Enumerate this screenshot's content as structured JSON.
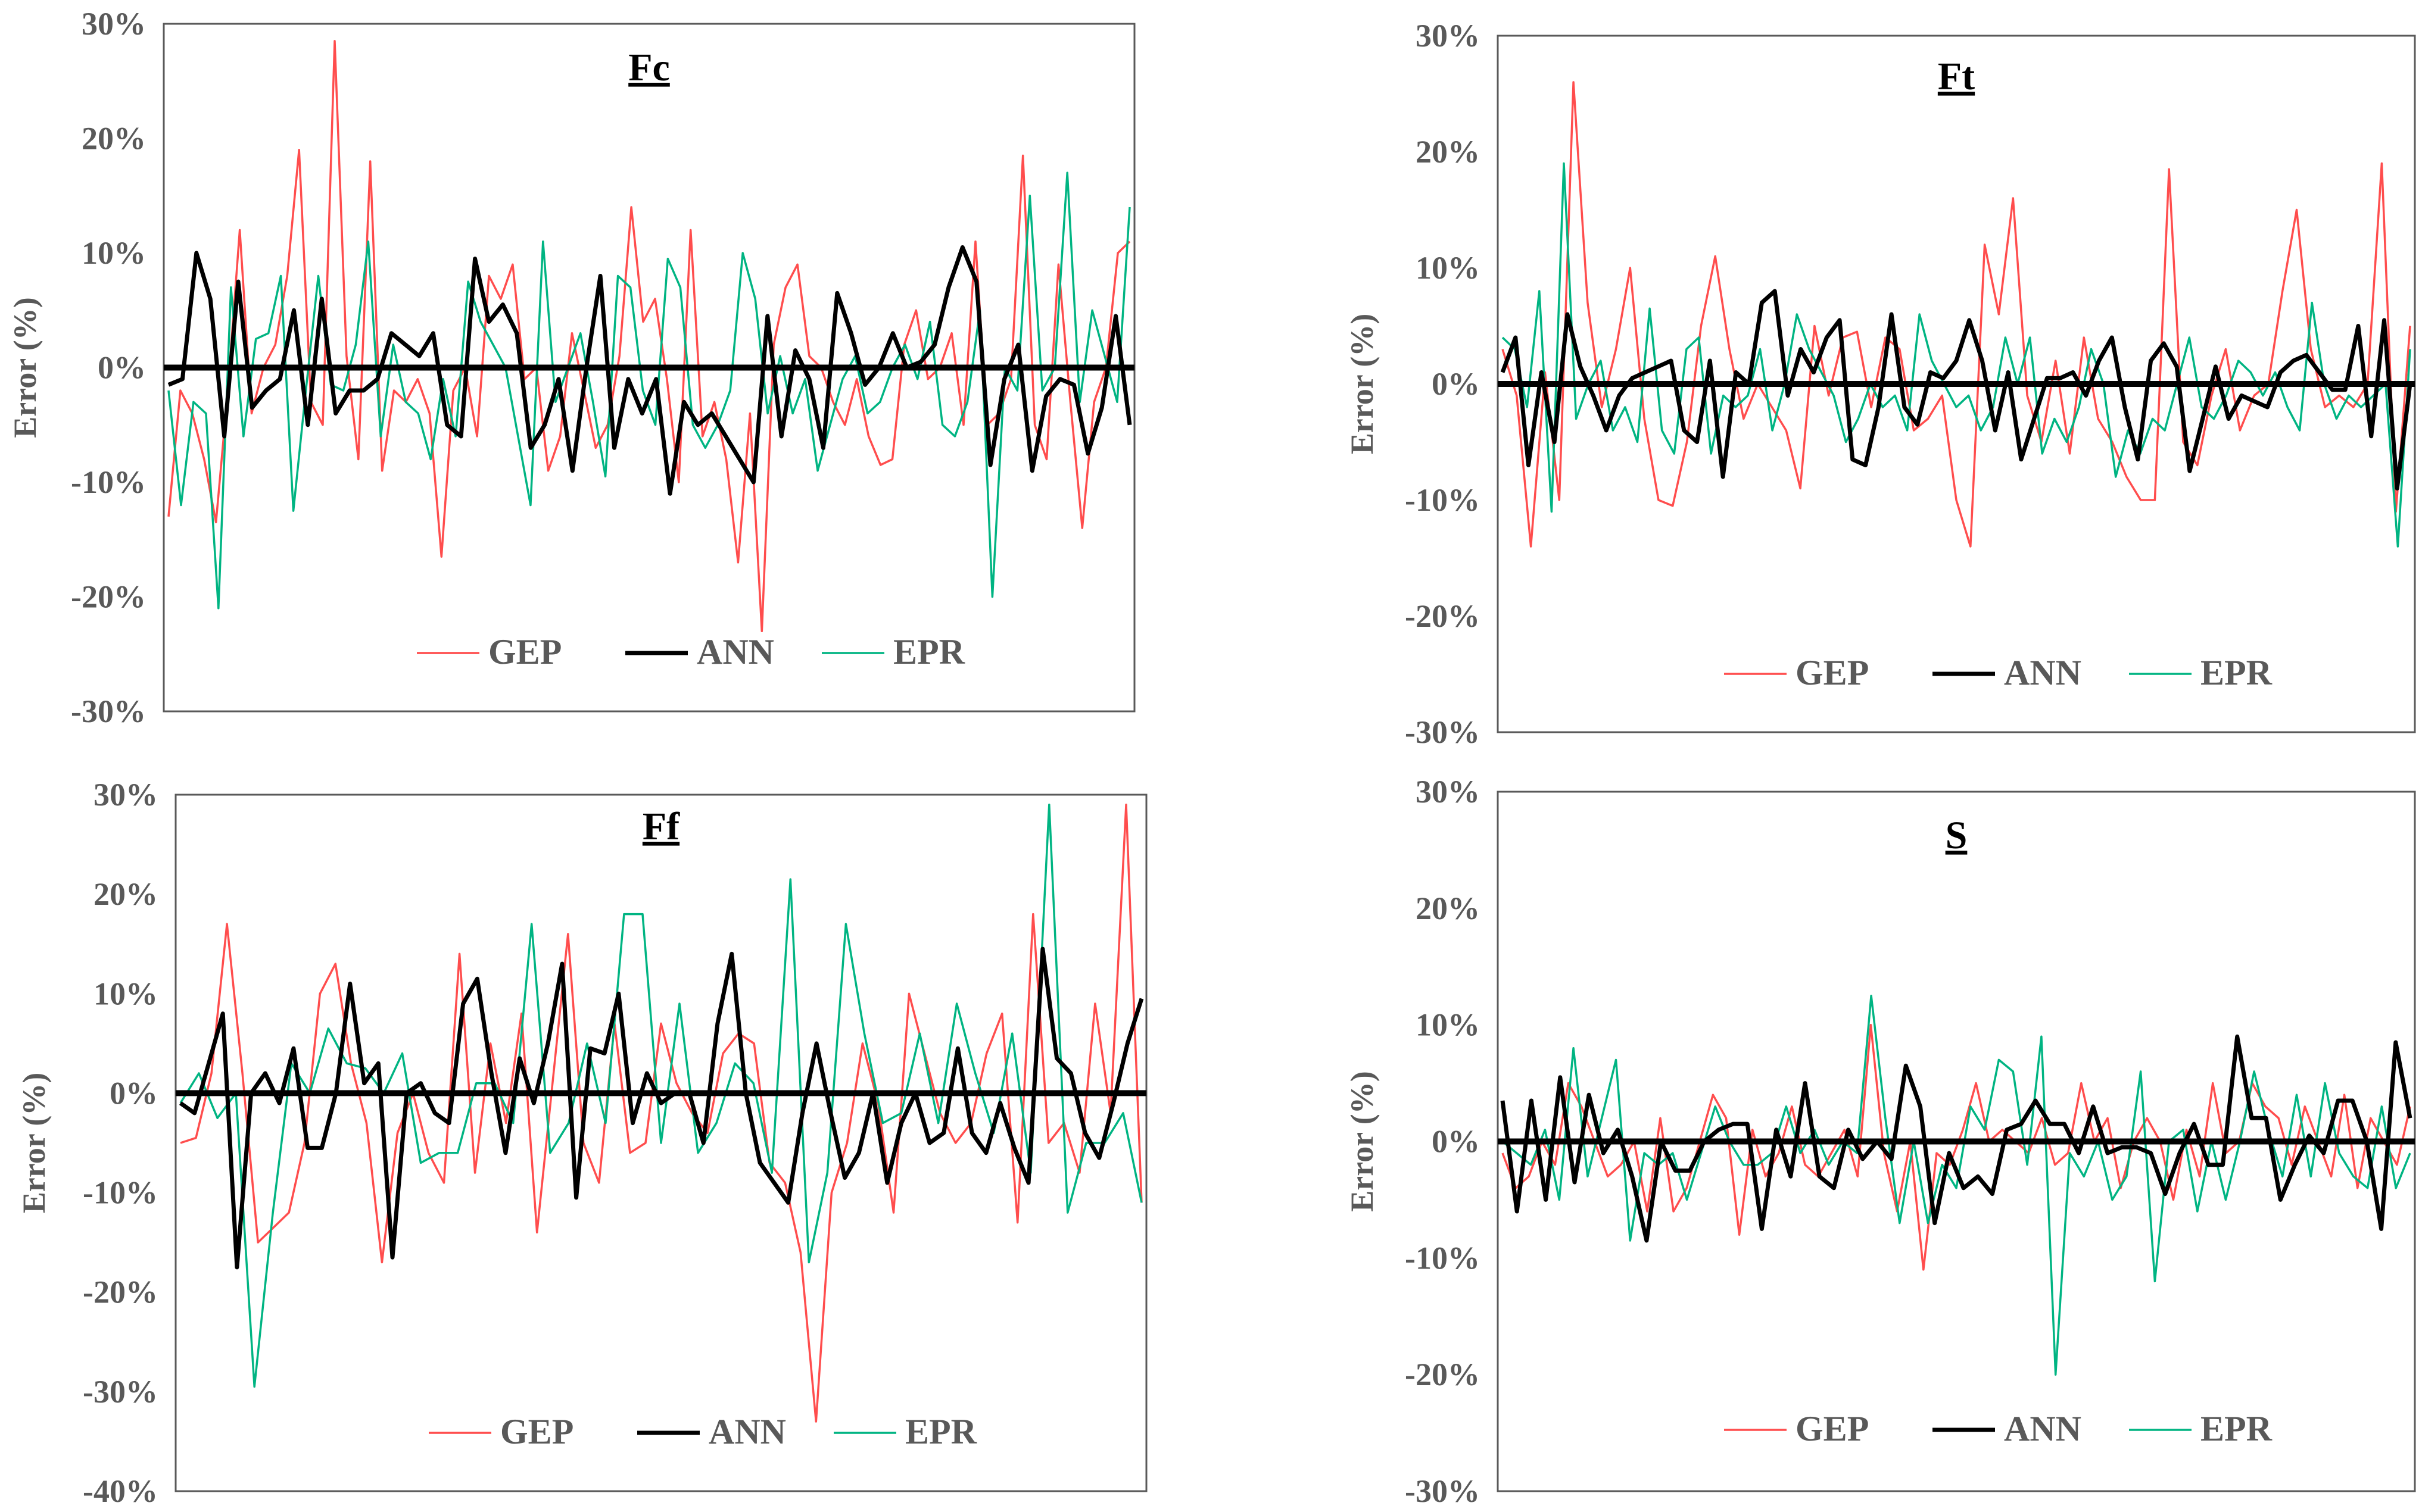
{
  "colors": {
    "GEP": "#ff4d4d",
    "ANN": "#000000",
    "EPR": "#00b482",
    "axis": "#595959",
    "zero": "#000000"
  },
  "chart_data": [
    {
      "type": "line",
      "title": "Fc",
      "xlabel": "",
      "ylabel": "Error (%)",
      "ylim": [
        -30,
        30
      ],
      "yticks": [
        "-30%",
        "-20%",
        "-10%",
        "0%",
        "10%",
        "20%",
        "30%"
      ],
      "legend": [
        "GEP",
        "ANN",
        "EPR"
      ],
      "legend_position": "bottom-center",
      "series": [
        {
          "name": "GEP",
          "values": [
            -13,
            -2,
            -4,
            -8,
            -13.5,
            -2,
            12,
            -4,
            0,
            2,
            8,
            19,
            -3,
            -5,
            28.5,
            1,
            -8,
            18,
            -9,
            -2,
            -3,
            -1,
            -4,
            -16.5,
            -2,
            0,
            -6,
            8,
            6,
            9,
            -1,
            0,
            -9,
            -6,
            3,
            -2,
            -7,
            -5,
            1,
            14,
            4,
            6,
            -1,
            -10,
            12,
            -6,
            -3,
            -8,
            -17,
            -4,
            -23,
            2,
            7,
            9,
            1,
            0,
            -3,
            -5,
            -1,
            -6,
            -8.5,
            -8,
            2,
            5,
            -1,
            0,
            3,
            -5,
            11,
            -5,
            -4,
            -1,
            18.5,
            -5,
            -8,
            9,
            -3,
            -14,
            -3,
            0,
            10,
            11
          ]
        },
        {
          "name": "ANN",
          "values": [
            -1.5,
            -1,
            10,
            6,
            -6,
            7.5,
            -3.5,
            -2,
            -1,
            5,
            -5,
            6,
            -4,
            -2,
            -2,
            -1,
            3,
            2,
            1,
            3,
            -5,
            -6,
            9.5,
            4,
            5.5,
            3,
            -7,
            -5,
            -1,
            -9,
            0,
            8,
            -7,
            -1,
            -4,
            -1,
            -11,
            -3,
            -5,
            -4,
            -6,
            -8,
            -10,
            4.5,
            -6,
            1.5,
            -1,
            -7,
            6.5,
            3,
            -1.5,
            0,
            3,
            0,
            0.5,
            2,
            7,
            10.5,
            7.5,
            -8.5,
            -1,
            2,
            -9,
            -2.5,
            -1,
            -1.5,
            -7.5,
            -3.5,
            4.5,
            -5
          ]
        },
        {
          "name": "EPR",
          "values": [
            -2,
            -12,
            -3,
            -4,
            -21,
            7,
            -6,
            2.5,
            3,
            8,
            -12.5,
            -2,
            8,
            -1.5,
            -2,
            2,
            11,
            -6,
            2,
            -3,
            -4,
            -8,
            -1,
            -6,
            7.5,
            4,
            2,
            0,
            -6,
            -12,
            11,
            -3,
            0,
            3,
            -3,
            -9.5,
            8,
            7,
            -2,
            -5,
            9.5,
            7,
            -5,
            -7,
            -5,
            -2,
            10,
            6,
            -4,
            1,
            -4,
            -1,
            -9,
            -5,
            -1,
            1,
            -4,
            -3,
            0,
            2,
            -1,
            4,
            -5,
            -6,
            -3,
            5,
            -20,
            0,
            -2,
            15,
            -2,
            0,
            17,
            -3,
            5,
            1,
            -3,
            14
          ]
        }
      ]
    },
    {
      "type": "line",
      "title": "Ft",
      "xlabel": "",
      "ylabel": "Error (%)",
      "ylim": [
        -30,
        30
      ],
      "yticks": [
        "-30%",
        "-20%",
        "-10%",
        "0%",
        "10%",
        "20%",
        "30%"
      ],
      "legend": [
        "GEP",
        "ANN",
        "EPR"
      ],
      "legend_position": "bottom-center",
      "series": [
        {
          "name": "GEP",
          "values": [
            3,
            -1,
            -14,
            1,
            -10,
            26,
            7,
            -2,
            3,
            10,
            -3,
            -10,
            -10.5,
            -5,
            5,
            11,
            3,
            -3,
            0,
            -2,
            -4,
            -9,
            5,
            -1,
            4,
            4.5,
            -2,
            4,
            3,
            -4,
            -3,
            -1,
            -10,
            -14,
            12,
            6,
            16,
            -1,
            -5,
            2,
            -6,
            4,
            -3,
            -5,
            -8,
            -10,
            -10,
            18.5,
            -5,
            -7,
            -1,
            3,
            -4,
            -1,
            0,
            8,
            15,
            3,
            -2,
            -1,
            -2,
            0,
            19,
            -11,
            5
          ]
        },
        {
          "name": "ANN",
          "values": [
            1,
            4,
            -7,
            1,
            -5,
            6,
            1.5,
            -1,
            -4,
            -1,
            0.5,
            1,
            1.5,
            2,
            -4,
            -5,
            2,
            -8,
            1,
            0,
            7,
            8,
            -1,
            3,
            1,
            4,
            5.5,
            -6.5,
            -7,
            -2,
            6,
            -2,
            -3.5,
            1,
            0.5,
            2,
            5.5,
            2,
            -4,
            1,
            -6.5,
            -3,
            0.5,
            0.5,
            1,
            -1,
            2,
            4,
            -2,
            -6.5,
            2,
            3.5,
            1.5,
            -7.5,
            -3,
            1.5,
            -3,
            -1,
            -1.5,
            -2,
            1,
            2,
            2.5,
            1,
            -0.5,
            -0.5,
            5,
            -4.5,
            5.5,
            -9,
            0
          ]
        },
        {
          "name": "EPR",
          "values": [
            4,
            3,
            -2,
            8,
            -11,
            19,
            -3,
            0,
            2,
            -4,
            -2,
            -5,
            6.5,
            -4,
            -6,
            3,
            4,
            -6,
            -1,
            -2,
            -1,
            3,
            -4,
            0,
            6,
            3,
            1,
            -1,
            -5,
            -3,
            0,
            -2,
            -1,
            -4,
            6,
            2,
            0,
            -2,
            -1,
            -4,
            -2,
            4,
            0,
            4,
            -6,
            -3,
            -5,
            -2,
            3,
            0,
            -8,
            -4,
            -6,
            -3,
            -4,
            0,
            4,
            -2,
            -3,
            -1,
            2,
            1,
            -1,
            1,
            -2,
            -4,
            7,
            0,
            -3,
            -1,
            -2,
            -1,
            0,
            -14,
            3
          ]
        }
      ]
    },
    {
      "type": "line",
      "title": "Ff",
      "xlabel": "",
      "ylabel": "Error (%)",
      "ylim": [
        -40,
        30
      ],
      "yticks": [
        "-40%",
        "-30%",
        "-20%",
        "-10%",
        "0%",
        "10%",
        "20%",
        "30%"
      ],
      "legend": [
        "GEP",
        "ANN",
        "EPR"
      ],
      "legend_position": "bottom-center",
      "series": [
        {
          "name": "GEP",
          "values": [
            -5,
            -4.5,
            2,
            17,
            2,
            -15,
            -13.5,
            -12,
            -5,
            10,
            13,
            3,
            -3,
            -17,
            -4,
            0,
            -6,
            -9,
            14,
            -8,
            5,
            -3,
            8,
            -14,
            1,
            16,
            -5,
            -9,
            7,
            -6,
            -5,
            7,
            1,
            -2,
            -4,
            4,
            6,
            5,
            -7,
            -9,
            -16,
            -33,
            -10,
            -5,
            5,
            -1,
            -12,
            10,
            4,
            -2,
            -5,
            -3,
            4,
            8,
            -13,
            18,
            -5,
            -3,
            -8,
            9,
            -2,
            29,
            -11
          ]
        },
        {
          "name": "ANN",
          "values": [
            -1,
            -2,
            3,
            8,
            -17.5,
            0,
            2,
            -1,
            4.5,
            -5.5,
            -5.5,
            0,
            11,
            1,
            3,
            -16.5,
            0,
            1,
            -2,
            -3,
            9,
            11.5,
            2,
            -6,
            3.5,
            -1,
            5,
            13,
            -10.5,
            4.5,
            4,
            10,
            -3,
            2,
            -1,
            0,
            0,
            -5,
            7,
            14,
            0,
            -7,
            -9,
            -11,
            -2,
            5,
            -2,
            -8.5,
            -6,
            0,
            -9,
            -3,
            0,
            -5,
            -4,
            4.5,
            -4,
            -6,
            -1,
            -5.5,
            -9,
            14.5,
            3.5,
            2,
            -4,
            -6.5,
            -1,
            5,
            9.5
          ]
        },
        {
          "name": "EPR",
          "values": [
            -1,
            2,
            -2.5,
            0,
            -29.5,
            -12,
            3,
            0,
            6.5,
            3,
            2.5,
            0,
            4,
            -7,
            -6,
            -6,
            1,
            1,
            -3,
            17,
            -6,
            -3,
            5,
            -3,
            18,
            18,
            -5,
            9,
            -6,
            -3,
            3,
            1,
            -8,
            21.5,
            -17,
            -8,
            17,
            6,
            -3,
            -2,
            6,
            -3,
            9,
            2,
            -4,
            6,
            -8,
            29,
            -12,
            -5,
            -5,
            -2,
            -11
          ]
        }
      ]
    },
    {
      "type": "line",
      "title": "S",
      "xlabel": "",
      "ylabel": "Error (%)",
      "ylim": [
        -30,
        30
      ],
      "yticks": [
        "-30%",
        "-20%",
        "-10%",
        "0%",
        "10%",
        "20%",
        "30%"
      ],
      "legend": [
        "GEP",
        "ANN",
        "EPR"
      ],
      "legend_position": "bottom-center",
      "series": [
        {
          "name": "GEP",
          "values": [
            -1,
            -4,
            -3,
            0,
            -2,
            5,
            3,
            0,
            -3,
            -2,
            0,
            -6,
            2,
            -6,
            -4,
            0,
            4,
            2,
            -8,
            1,
            -3,
            -1,
            3,
            -2,
            -3,
            -1,
            1,
            -3,
            10,
            -1,
            -6,
            0,
            -11,
            -1,
            -2,
            1,
            5,
            0,
            1,
            0,
            -1,
            2,
            -2,
            -1,
            5,
            0,
            2,
            -4,
            0,
            2,
            0,
            -5,
            1,
            -3,
            5,
            -1,
            0,
            5,
            3,
            2,
            -2,
            3,
            0,
            -3,
            4,
            -4,
            2,
            0,
            -2,
            3
          ]
        },
        {
          "name": "ANN",
          "values": [
            3.5,
            -6,
            3.5,
            -5,
            5.5,
            -3.5,
            4,
            -1,
            1,
            -3,
            -8.5,
            0,
            -2.5,
            -2.5,
            0,
            1,
            1.5,
            1.5,
            -7.5,
            1,
            -3,
            5,
            -3,
            -4,
            1,
            -1.5,
            0,
            -1.5,
            6.5,
            3,
            -7,
            -1,
            -4,
            -3,
            -4.5,
            1,
            1.5,
            3.5,
            1.5,
            1.5,
            -1,
            3,
            -1,
            -0.5,
            -0.5,
            -1,
            -4.5,
            -1,
            1.5,
            -2,
            -2,
            9,
            2,
            2,
            -5,
            -2,
            0.5,
            -1,
            3.5,
            3.5,
            0,
            -7.5,
            8.5,
            2
          ]
        },
        {
          "name": "EPR",
          "values": [
            0,
            -1,
            -2,
            1,
            -5,
            8,
            -3,
            2,
            7,
            -8.5,
            -1,
            -2,
            -1,
            -5,
            -1,
            3,
            0,
            -2,
            -2,
            -1,
            3,
            -1,
            1,
            -2,
            0,
            -1,
            12.5,
            2,
            -7,
            0,
            -7,
            -2,
            -4,
            3,
            1,
            7,
            6,
            -2,
            9,
            -20,
            -1,
            -3,
            0,
            -5,
            -3,
            6,
            -12,
            0,
            1,
            -6,
            0,
            -5,
            0,
            6,
            1,
            -3,
            4,
            -3,
            5,
            -1,
            -3,
            -4,
            3,
            -4,
            -1
          ]
        }
      ]
    }
  ]
}
